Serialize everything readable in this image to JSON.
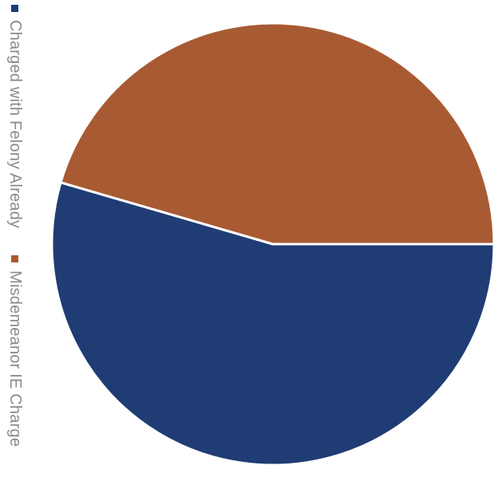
{
  "chart_data": {
    "type": "pie",
    "title": "",
    "slices": [
      {
        "label": "Charged with Felony Already",
        "value": 54.5,
        "color": "#1f3c74"
      },
      {
        "label": "Misdemeanor IE Charge",
        "value": 45.5,
        "color": "#a85a33"
      }
    ],
    "start_angle_deg": 0,
    "direction": "clockwise",
    "legend_position": "left",
    "legend_orientation": "rotated-vertical",
    "separator_color": "#ffffff"
  },
  "legend": {
    "items": [
      {
        "label": "Charged with Felony Already",
        "color": "#1f3c74"
      },
      {
        "label": "Misdemeanor IE Charge",
        "color": "#a85a33"
      }
    ]
  }
}
